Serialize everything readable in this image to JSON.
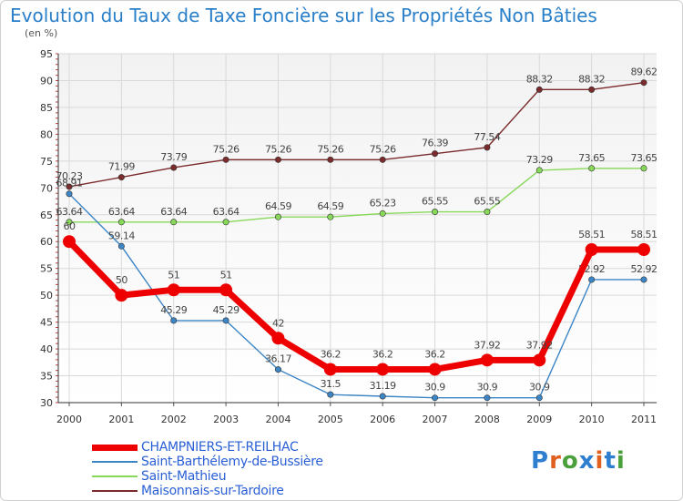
{
  "title": "Evolution du Taux de Taxe Foncière sur les Propriétés Non Bâties",
  "subtitle": "(en %)",
  "logo_text": "Proxiti",
  "colors": {
    "title": "#2a7fc9",
    "grid": "#d9d9d9",
    "axis": "#333333",
    "plot_bg_top": "#f2f2f2",
    "plot_bg_bottom": "#ffffff",
    "logo_letters": [
      "#2f7fd0",
      "#e06020",
      "#4aa03a",
      "#2f7fd0",
      "#e06020",
      "#2f7fd0",
      "#4aa03a"
    ]
  },
  "chart_data": {
    "type": "line",
    "x": [
      "2000",
      "2001",
      "2002",
      "2003",
      "2004",
      "2005",
      "2006",
      "2007",
      "2008",
      "2009",
      "2010",
      "2011"
    ],
    "ylim": [
      30,
      95
    ],
    "yticks": [
      30,
      35,
      40,
      45,
      50,
      55,
      60,
      65,
      70,
      75,
      80,
      85,
      90,
      95
    ],
    "grid": true,
    "legend_position": "bottom-left",
    "series": [
      {
        "name": "Maisonnais-sur-Tardoire",
        "color": "#7b2b2b",
        "values": [
          70.23,
          71.99,
          73.79,
          75.26,
          75.26,
          75.26,
          75.26,
          76.39,
          77.54,
          88.32,
          88.32,
          89.62
        ],
        "labels": [
          "70.23",
          "71.99",
          "73.79",
          "75.26",
          "75.26",
          "75.26",
          "75.26",
          "76.39",
          "77.54",
          "88.32",
          "88.32",
          "89.62"
        ]
      },
      {
        "name": "Saint-Mathieu",
        "color": "#88d85a",
        "values": [
          63.64,
          63.64,
          63.64,
          63.64,
          64.59,
          64.59,
          65.23,
          65.55,
          65.55,
          73.29,
          73.65,
          73.65
        ],
        "labels": [
          "63.64",
          "63.64",
          "63.64",
          "63.64",
          "64.59",
          "64.59",
          "65.23",
          "65.55",
          "65.55",
          "73.29",
          "73.65",
          "73.65"
        ]
      },
      {
        "name": "Saint-Barthélemy-de-Bussière",
        "color": "#3d86c6",
        "values": [
          68.91,
          59.14,
          45.29,
          45.29,
          36.17,
          31.5,
          31.19,
          30.9,
          30.9,
          30.9,
          52.92,
          52.92
        ],
        "labels": [
          "68.91",
          "59.14",
          "45.29",
          "45.29",
          "36.17",
          "31.5",
          "31.19",
          "30.9",
          "30.9",
          "30.9",
          "52.92",
          "52.92"
        ]
      },
      {
        "name": "CHAMPNIERS-ET-REILHAC",
        "color": "#ee0000",
        "values": [
          60,
          50,
          51,
          51,
          42,
          36.2,
          36.2,
          36.2,
          37.92,
          37.92,
          58.51,
          58.51
        ],
        "labels": [
          "60",
          "50",
          "51",
          "51",
          "42",
          "36.2",
          "36.2",
          "36.2",
          "37.92",
          "37.92",
          "58.51",
          "58.51"
        ]
      }
    ],
    "legend_order": [
      "CHAMPNIERS-ET-REILHAC",
      "Saint-Barthélemy-de-Bussière",
      "Saint-Mathieu",
      "Maisonnais-sur-Tardoire"
    ]
  }
}
